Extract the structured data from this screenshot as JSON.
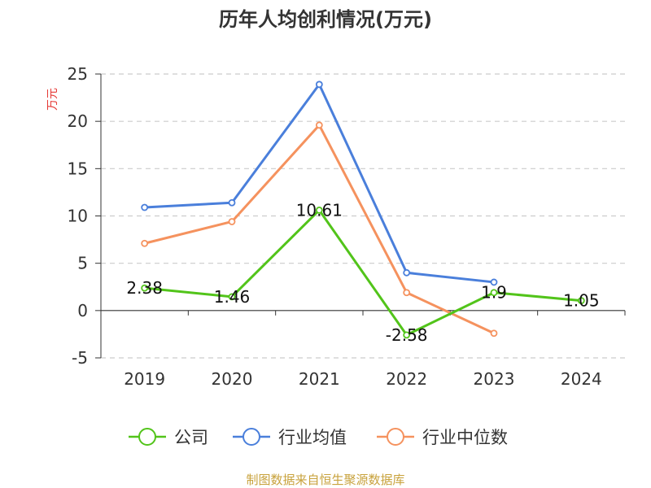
{
  "chart_data": {
    "type": "line",
    "title": "历年人均创利情况(万元)",
    "ylabel": "万元",
    "xlabel": "",
    "categories": [
      "2019",
      "2020",
      "2021",
      "2022",
      "2023",
      "2024"
    ],
    "ylim": [
      -5,
      25
    ],
    "yticks": [
      -5,
      0,
      5,
      10,
      15,
      20,
      25
    ],
    "grid": true,
    "legend_position": "bottom",
    "series": [
      {
        "name": "公司",
        "color": "#52c41a",
        "values": [
          2.38,
          1.46,
          10.61,
          -2.58,
          1.9,
          1.05
        ],
        "labels": [
          "2.38",
          "1.46",
          "10.61",
          "-2.58",
          "1.9",
          "1.05"
        ]
      },
      {
        "name": "行业均值",
        "color": "#4a7fdb",
        "values": [
          10.9,
          11.4,
          23.9,
          4.0,
          3.0,
          null
        ]
      },
      {
        "name": "行业中位数",
        "color": "#f5925e",
        "values": [
          7.1,
          9.4,
          19.6,
          1.9,
          -2.4,
          null
        ]
      }
    ]
  },
  "source": "制图数据来自恒生聚源数据库"
}
